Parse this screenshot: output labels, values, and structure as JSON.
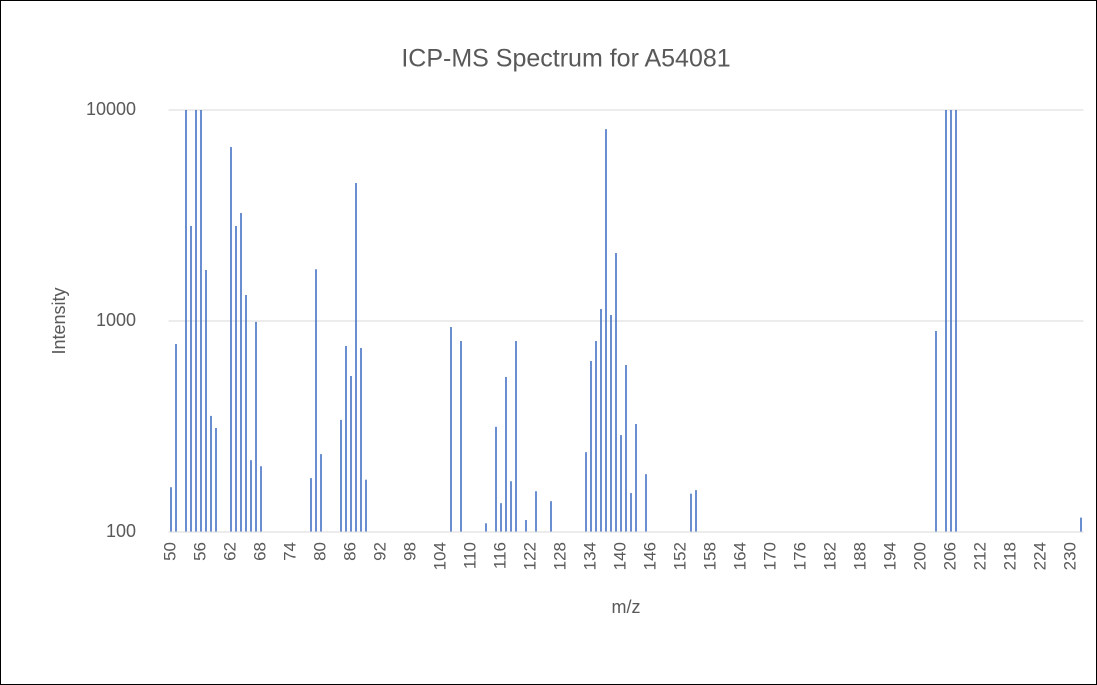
{
  "chart_data": {
    "type": "bar",
    "title": "ICP-MS Spectrum for A54081",
    "x_label": "m/z",
    "y_label": "Intensity",
    "x": [
      50,
      51,
      53,
      54,
      55,
      56,
      57,
      58,
      59,
      62,
      63,
      64,
      65,
      66,
      67,
      68,
      78,
      79,
      80,
      84,
      85,
      86,
      87,
      88,
      89,
      106,
      108,
      113,
      115,
      116,
      117,
      118,
      119,
      121,
      123,
      126,
      133,
      134,
      135,
      136,
      137,
      138,
      139,
      140,
      141,
      142,
      143,
      145,
      154,
      155,
      203,
      205,
      206,
      207,
      232
    ],
    "values": [
      163,
      778,
      10000,
      2820,
      10000,
      10000,
      1745,
      355,
      311,
      6680,
      2820,
      3250,
      1328,
      219,
      990,
      205,
      180,
      1760,
      234,
      340,
      761,
      549,
      4510,
      745,
      177,
      937,
      804,
      110,
      315,
      137,
      543,
      174,
      804,
      114,
      156,
      140,
      239,
      646,
      804,
      1140,
      8120,
      1067,
      2100,
      288,
      619,
      153,
      325,
      188,
      152,
      158,
      897,
      10000,
      10000,
      10000,
      117
    ],
    "color": "#4472c4",
    "xlim": [
      49.5,
      232.5
    ],
    "xticks": [
      50,
      56,
      62,
      68,
      74,
      80,
      86,
      92,
      98,
      104,
      110,
      116,
      122,
      128,
      134,
      140,
      146,
      152,
      158,
      164,
      170,
      176,
      182,
      188,
      194,
      200,
      206,
      212,
      218,
      224,
      230
    ],
    "ylim": [
      100,
      10000
    ],
    "yticks": [
      100,
      1000,
      10000
    ],
    "log_y": true,
    "grid": true
  }
}
